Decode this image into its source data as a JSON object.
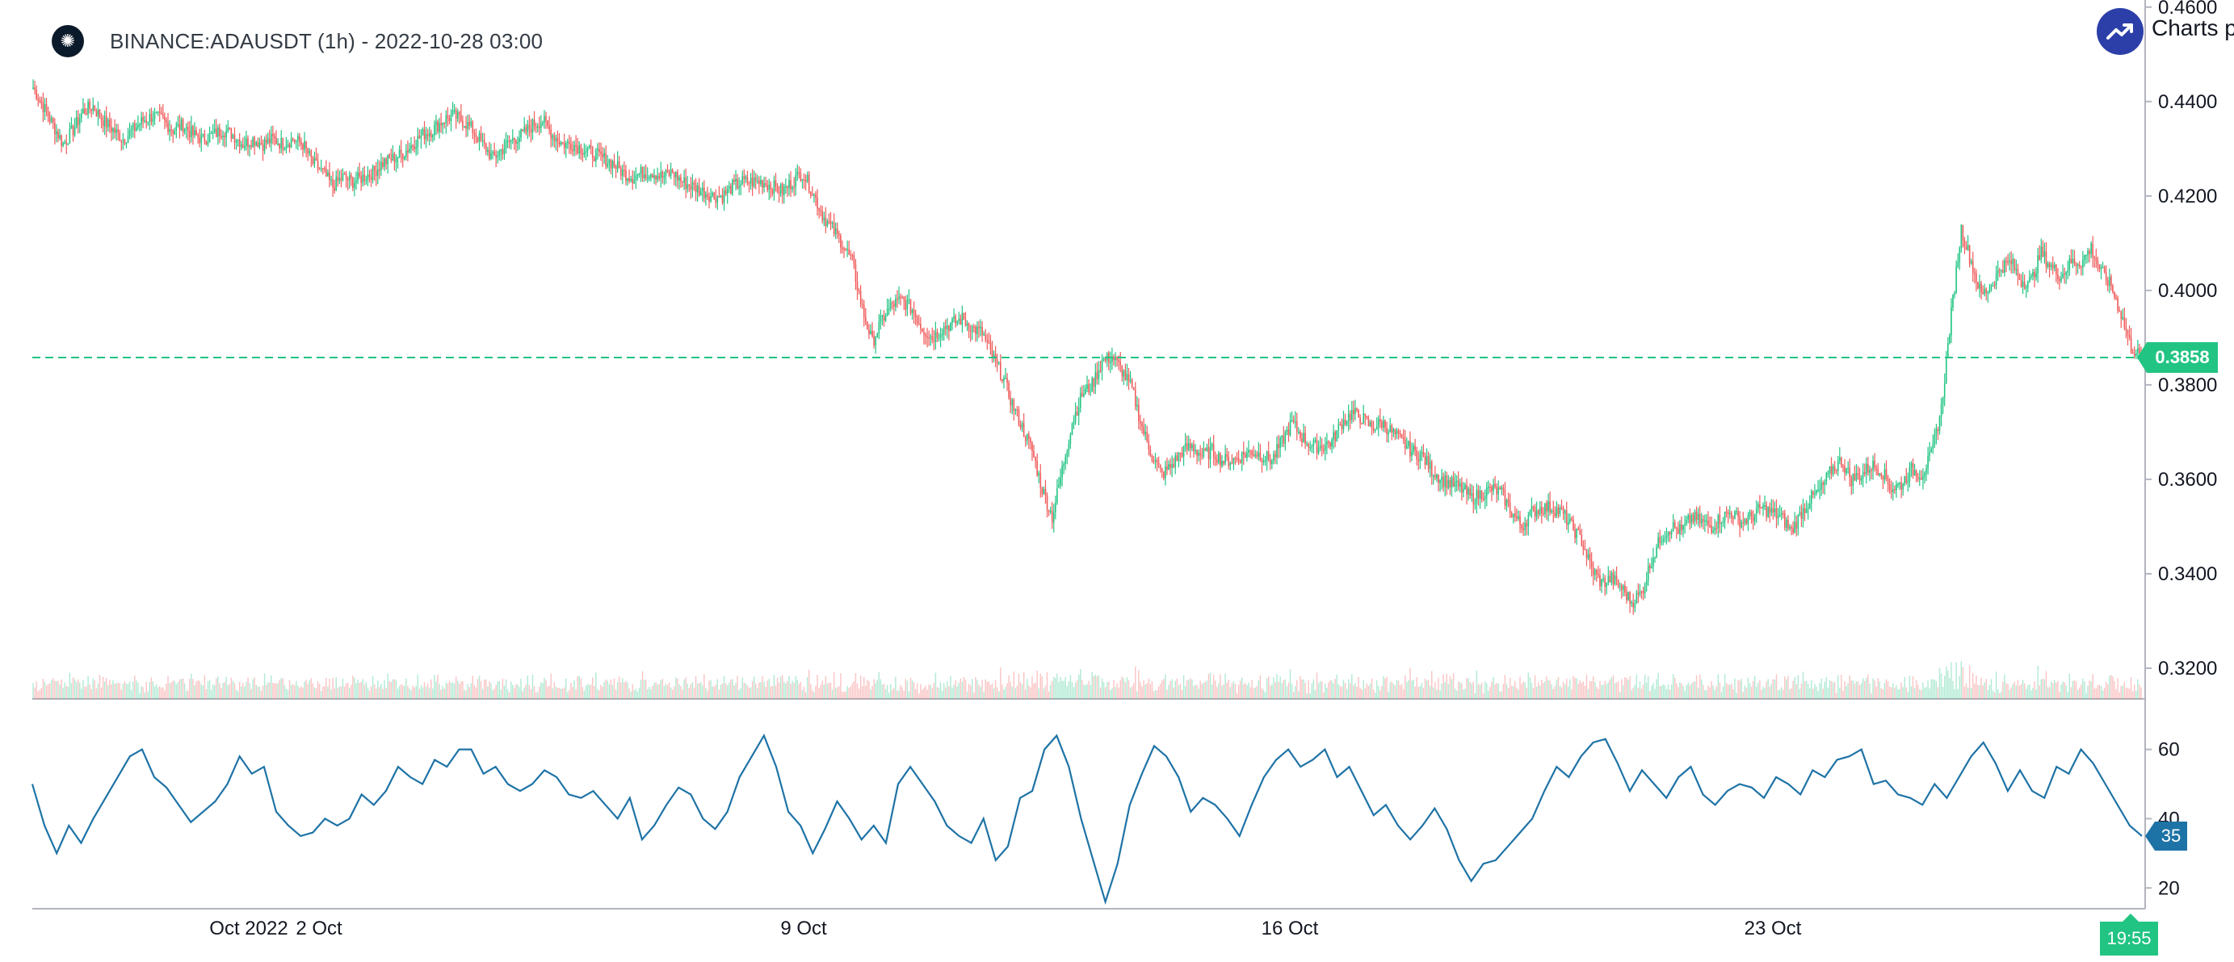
{
  "header": {
    "title": "BINANCE:ADAUSDT (1h) - 2022-10-28 03:00",
    "symbol_icon": "cardano-icon"
  },
  "brand": {
    "text": "Charts p",
    "icon": "trend-up-icon",
    "color": "#2c3fa9"
  },
  "price_tag": "0.3858",
  "rsi_tag": "35",
  "time_tag": "19:55",
  "colors": {
    "up": "#26a69a",
    "down": "#ef5350",
    "candle_up": "#22c483",
    "candle_down": "#f05a5a",
    "rsi_line": "#1e73a6",
    "last_price_line": "#22c483",
    "axis": "#b2b5be",
    "text": "#131722"
  },
  "chart_data": [
    {
      "type": "candlestick",
      "title": "",
      "x_tick_labels": [
        "Oct 2022",
        "2 Oct",
        "9 Oct",
        "16 Oct",
        "23 Oct"
      ],
      "y_tick_labels": [
        "0.4600",
        "0.4400",
        "0.4200",
        "0.4000",
        "0.3800",
        "0.3600",
        "0.3400",
        "0.3200"
      ],
      "ylim": [
        0.3135,
        0.4615
      ],
      "last_price": 0.3858,
      "last_price_line": "dashed",
      "close_series": {
        "step_hours": 6,
        "start": "2022-09-29 03:00",
        "values": [
          0.443,
          0.439,
          0.435,
          0.431,
          0.434,
          0.438,
          0.439,
          0.436,
          0.434,
          0.432,
          0.434,
          0.436,
          0.437,
          0.436,
          0.434,
          0.435,
          0.433,
          0.432,
          0.433,
          0.434,
          0.433,
          0.431,
          0.432,
          0.431,
          0.432,
          0.431,
          0.432,
          0.431,
          0.427,
          0.425,
          0.422,
          0.424,
          0.423,
          0.424,
          0.425,
          0.427,
          0.428,
          0.429,
          0.431,
          0.433,
          0.434,
          0.436,
          0.437,
          0.436,
          0.434,
          0.431,
          0.428,
          0.43,
          0.432,
          0.433,
          0.435,
          0.436,
          0.433,
          0.431,
          0.431,
          0.43,
          0.429,
          0.428,
          0.427,
          0.425,
          0.424,
          0.425,
          0.425,
          0.424,
          0.425,
          0.423,
          0.422,
          0.421,
          0.42,
          0.42,
          0.422,
          0.423,
          0.423,
          0.423,
          0.422,
          0.421,
          0.423,
          0.425,
          0.421,
          0.416,
          0.413,
          0.41,
          0.406,
          0.396,
          0.389,
          0.394,
          0.397,
          0.398,
          0.396,
          0.392,
          0.39,
          0.392,
          0.393,
          0.394,
          0.392,
          0.391,
          0.386,
          0.382,
          0.376,
          0.371,
          0.366,
          0.358,
          0.352,
          0.362,
          0.372,
          0.378,
          0.38,
          0.385,
          0.386,
          0.383,
          0.379,
          0.371,
          0.365,
          0.361,
          0.363,
          0.366,
          0.367,
          0.365,
          0.366,
          0.364,
          0.364,
          0.365,
          0.366,
          0.365,
          0.364,
          0.368,
          0.372,
          0.369,
          0.367,
          0.367,
          0.368,
          0.372,
          0.374,
          0.373,
          0.371,
          0.372,
          0.37,
          0.368,
          0.366,
          0.365,
          0.362,
          0.36,
          0.359,
          0.358,
          0.356,
          0.357,
          0.358,
          0.357,
          0.353,
          0.35,
          0.353,
          0.354,
          0.354,
          0.353,
          0.35,
          0.347,
          0.341,
          0.338,
          0.339,
          0.337,
          0.334,
          0.336,
          0.343,
          0.348,
          0.35,
          0.349,
          0.352,
          0.351,
          0.35,
          0.352,
          0.353,
          0.351,
          0.352,
          0.354,
          0.353,
          0.352,
          0.349,
          0.353,
          0.356,
          0.358,
          0.362,
          0.364,
          0.36,
          0.361,
          0.363,
          0.362,
          0.358,
          0.359,
          0.362,
          0.361,
          0.365,
          0.375,
          0.395,
          0.413,
          0.406,
          0.399,
          0.401,
          0.405,
          0.406,
          0.402,
          0.402,
          0.408,
          0.405,
          0.403,
          0.406,
          0.406,
          0.409,
          0.404,
          0.401,
          0.395,
          0.388,
          0.3858
        ]
      },
      "volume": "relative bars at bottom, spikes near 10 Oct, 14 Oct and 26 Oct",
      "colors": {
        "up": "#22c483",
        "down": "#f05a5a"
      }
    },
    {
      "type": "line",
      "title": "",
      "y_tick_labels": [
        "60",
        "40",
        "20"
      ],
      "ylim": [
        14,
        69
      ],
      "series": [
        {
          "values": [
            50,
            38,
            30,
            38,
            33,
            40,
            46,
            52,
            58,
            60,
            52,
            49,
            44,
            39,
            42,
            45,
            50,
            58,
            53,
            55,
            42,
            38,
            35,
            36,
            40,
            38,
            40,
            47,
            44,
            48,
            55,
            52,
            50,
            57,
            55,
            60,
            60,
            53,
            55,
            50,
            48,
            50,
            54,
            52,
            47,
            46,
            48,
            44,
            40,
            46,
            34,
            38,
            44,
            49,
            47,
            40,
            37,
            42,
            52,
            58,
            64,
            55,
            42,
            38,
            30,
            37,
            45,
            40,
            34,
            38,
            33,
            50,
            55,
            50,
            45,
            38,
            35,
            33,
            40,
            28,
            32,
            46,
            48,
            60,
            64,
            55,
            40,
            28,
            16,
            27,
            44,
            53,
            61,
            58,
            52,
            42,
            46,
            44,
            40,
            35,
            44,
            52,
            57,
            60,
            55,
            57,
            60,
            52,
            55,
            48,
            41,
            44,
            38,
            34,
            38,
            43,
            37,
            28,
            22,
            27,
            28,
            32,
            36,
            40,
            48,
            55,
            52,
            58,
            62,
            63,
            56,
            48,
            54,
            50,
            46,
            52,
            55,
            47,
            44,
            48,
            50,
            49,
            46,
            52,
            50,
            47,
            54,
            52,
            57,
            58,
            60,
            50,
            51,
            47,
            46,
            44,
            50,
            46,
            52,
            58,
            62,
            56,
            48,
            54,
            48,
            46,
            55,
            53,
            60,
            56,
            50,
            44,
            38,
            35
          ]
        }
      ]
    }
  ]
}
